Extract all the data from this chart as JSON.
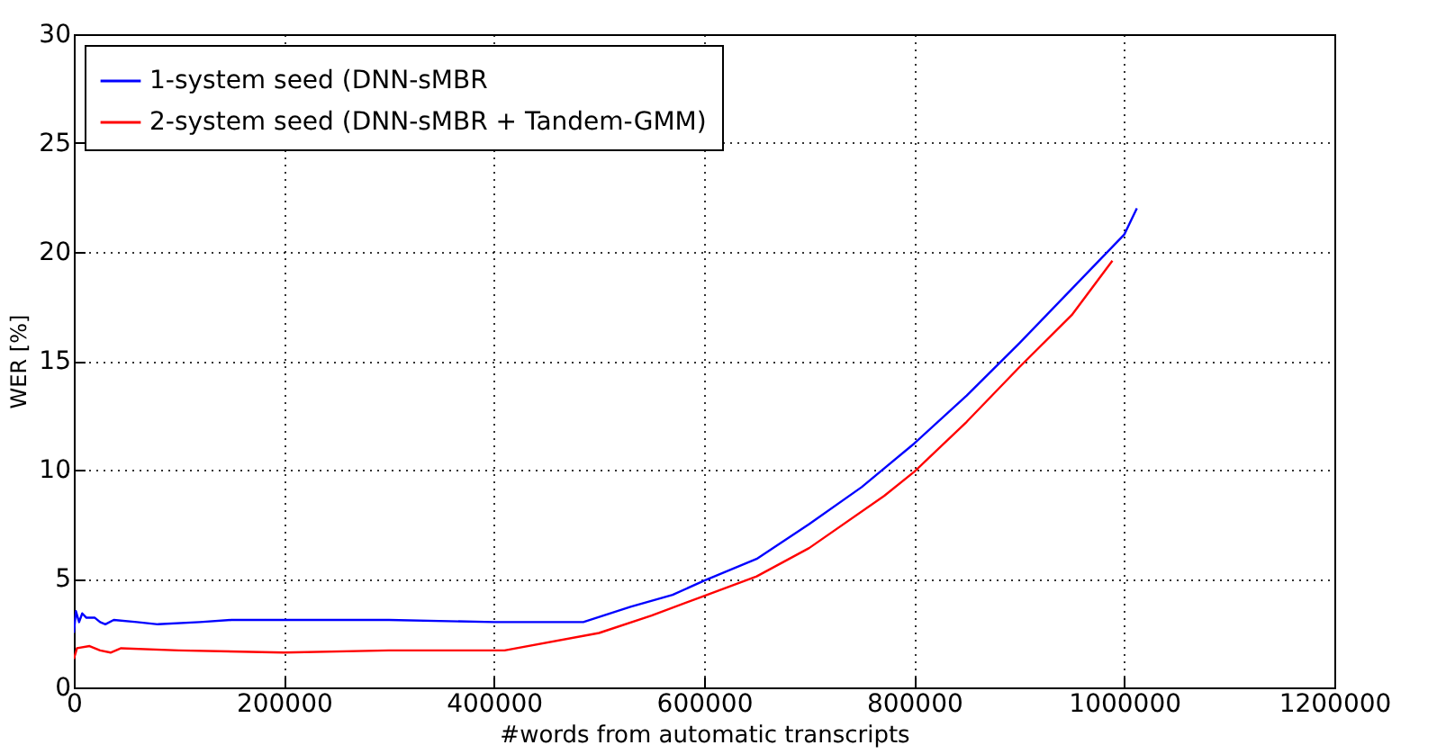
{
  "chart_data": {
    "type": "line",
    "xlabel": "#words from automatic transcripts",
    "ylabel": "WER [%]",
    "xlim": [
      0,
      1200000
    ],
    "ylim": [
      0,
      30
    ],
    "xticks": [
      0,
      200000,
      400000,
      600000,
      800000,
      1000000,
      1200000
    ],
    "yticks": [
      0,
      5,
      10,
      15,
      20,
      25,
      30
    ],
    "grid": true,
    "legend": "top left",
    "line_style": "solid",
    "marker": "none",
    "series": [
      {
        "name": "1-system seed (DNN-sMBR",
        "color": "#0000ff",
        "x": [
          0,
          2000,
          5000,
          8000,
          12000,
          20000,
          25000,
          30000,
          38000,
          60000,
          80000,
          120000,
          150000,
          200000,
          300000,
          400000,
          485000,
          530000,
          570000,
          600000,
          650000,
          700000,
          750000,
          800000,
          850000,
          900000,
          950000,
          1000000,
          1012000
        ],
        "values": [
          2.5,
          3.5,
          3.0,
          3.4,
          3.2,
          3.2,
          3.0,
          2.9,
          3.1,
          3.0,
          2.9,
          3.0,
          3.1,
          3.1,
          3.1,
          3.0,
          3.0,
          3.7,
          4.25,
          4.9,
          5.9,
          7.5,
          9.2,
          11.2,
          13.4,
          15.8,
          18.3,
          20.8,
          22.0
        ]
      },
      {
        "name": "2-system seed (DNN-sMBR + Tandem-GMM)",
        "color": "#ff0000",
        "x": [
          0,
          3000,
          15000,
          25000,
          35000,
          45000,
          100000,
          200000,
          300000,
          410000,
          500000,
          550000,
          600000,
          650000,
          700000,
          771600,
          800000,
          850000,
          900000,
          950000,
          988700
        ],
        "values": [
          1.3,
          1.8,
          1.9,
          1.7,
          1.6,
          1.8,
          1.7,
          1.6,
          1.7,
          1.7,
          2.5,
          3.3,
          4.2,
          5.1,
          6.4,
          8.8,
          9.9,
          12.2,
          14.7,
          17.1,
          19.6
        ]
      }
    ]
  }
}
